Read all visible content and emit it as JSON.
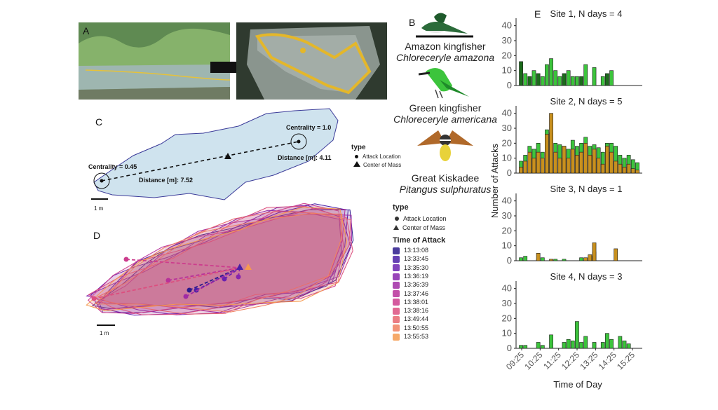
{
  "panels": {
    "a": {
      "letter": "A"
    },
    "b": {
      "letter": "B",
      "birds": [
        {
          "common": "Amazon kingfisher",
          "scientific": "Chloreceryle amazona"
        },
        {
          "common": "Green kingfisher",
          "scientific": "Chloreceryle americana"
        },
        {
          "common": "Great  Kiskadee",
          "scientific": "Pitangus sulphuratus"
        }
      ]
    },
    "c": {
      "letter": "C",
      "centrality_left": "Centrality = 0.45",
      "centrality_right": "Centrality = 1.0",
      "distance_left": "Distance [m]: 7.52",
      "distance_right": "Distance [m]: 4.11",
      "scale": "1 m",
      "legend_title": "type",
      "legend_items": [
        "Attack Location",
        "Center of Mass"
      ]
    },
    "d": {
      "letter": "D",
      "scale": "1 m"
    },
    "e": {
      "letter": "E"
    }
  },
  "legend_d": {
    "type_title": "type",
    "type_items": [
      "Attack Location",
      "Center of Mass"
    ],
    "time_title": "Time of Attack",
    "times": [
      "13:13:08",
      "13:33:45",
      "13:35:30",
      "13:36:19",
      "13:36:39",
      "13:37:46",
      "13:38:01",
      "13:38:16",
      "13:49:44",
      "13:50:55",
      "13:55:53"
    ],
    "colors": [
      "#2b1a8c",
      "#4a1fa6",
      "#6a22b0",
      "#8625ad",
      "#a02aa5",
      "#b8319a",
      "#cc3d8d",
      "#dc4f7f",
      "#e8666f",
      "#f08060",
      "#f59a4f"
    ]
  },
  "chart_data": {
    "type": "bar",
    "stacked": true,
    "ylabel": "Number of Attacks",
    "xlabel": "Time of Day",
    "x_tick_labels": [
      "09:25",
      "10:25",
      "11:25",
      "12:25",
      "13:25",
      "14:25",
      "15:25"
    ],
    "bins": 28,
    "ylim": [
      0,
      45
    ],
    "yticks": [
      0,
      10,
      20,
      30,
      40
    ],
    "series_colors": {
      "amazon_kingfisher": "#1b6b1b",
      "green_kingfisher": "#3cc43c",
      "great_kiskadee": "#c8901e"
    },
    "panels": [
      {
        "title": "Site 1, N days = 4",
        "dark": [
          16,
          0,
          6,
          0,
          8,
          0,
          0,
          0,
          0,
          0,
          8,
          0,
          0,
          0,
          6,
          0,
          0,
          0,
          0,
          0,
          8,
          0,
          0,
          0,
          0,
          0,
          0,
          0
        ],
        "green": [
          0,
          8,
          0,
          10,
          0,
          6,
          14,
          18,
          10,
          6,
          0,
          10,
          6,
          6,
          0,
          14,
          0,
          12,
          0,
          6,
          0,
          10,
          0,
          0,
          0,
          0,
          0,
          0
        ],
        "orange": [
          0,
          0,
          0,
          0,
          0,
          0,
          0,
          0,
          0,
          0,
          0,
          0,
          0,
          0,
          0,
          0,
          0,
          0,
          0,
          0,
          0,
          0,
          0,
          0,
          0,
          0,
          0,
          0
        ]
      },
      {
        "title": "Site 2, N days = 5",
        "dark": [
          0,
          0,
          0,
          0,
          0,
          0,
          0,
          0,
          0,
          0,
          0,
          0,
          0,
          0,
          0,
          0,
          0,
          0,
          0,
          0,
          0,
          0,
          0,
          0,
          0,
          0,
          0,
          0
        ],
        "green": [
          0,
          0,
          0,
          0,
          0,
          0,
          0,
          0,
          0,
          0,
          0,
          0,
          0,
          0,
          0,
          0,
          0,
          0,
          0,
          0,
          0,
          0,
          0,
          0,
          0,
          0,
          0,
          0
        ],
        "orange": [
          0,
          0,
          0,
          0,
          0,
          0,
          0,
          0,
          0,
          0,
          0,
          0,
          0,
          0,
          0,
          0,
          0,
          0,
          0,
          0,
          0,
          0,
          0,
          0,
          0,
          0,
          0,
          0
        ]
      },
      {
        "title": "Site 3, N days = 1",
        "dark": [
          0,
          0,
          0,
          0,
          0,
          0,
          0,
          0,
          0,
          0,
          0,
          0,
          0,
          0,
          0,
          0,
          0,
          0,
          0,
          0,
          0,
          0,
          0,
          0,
          0,
          0,
          0,
          0
        ],
        "green": [
          2,
          3,
          0,
          0,
          1,
          2,
          0,
          0,
          1,
          0,
          1,
          0,
          0,
          0,
          2,
          0,
          3,
          6,
          0,
          0,
          0,
          0,
          0,
          0,
          0,
          0,
          0,
          0
        ],
        "orange": [
          0,
          0,
          0,
          0,
          5,
          0,
          0,
          1,
          0,
          0,
          0,
          0,
          0,
          0,
          0,
          2,
          4,
          12,
          0,
          0,
          0,
          0,
          8,
          0,
          0,
          0,
          0,
          0
        ]
      },
      {
        "title": "Site 4, N days = 3",
        "dark": [
          0,
          0,
          0,
          0,
          0,
          0,
          0,
          0,
          0,
          0,
          0,
          0,
          0,
          0,
          0,
          0,
          0,
          0,
          0,
          0,
          0,
          0,
          0,
          0,
          0,
          0,
          0,
          0
        ],
        "green": [
          2,
          2,
          0,
          0,
          4,
          2,
          0,
          9,
          0,
          0,
          4,
          6,
          5,
          18,
          4,
          8,
          0,
          4,
          0,
          4,
          10,
          6,
          0,
          8,
          5,
          3,
          0,
          0
        ],
        "orange": [
          0,
          0,
          0,
          0,
          0,
          0,
          0,
          0,
          0,
          0,
          0,
          0,
          0,
          0,
          0,
          0,
          0,
          0,
          0,
          0,
          0,
          0,
          0,
          0,
          0,
          0,
          0,
          0
        ]
      }
    ]
  }
}
